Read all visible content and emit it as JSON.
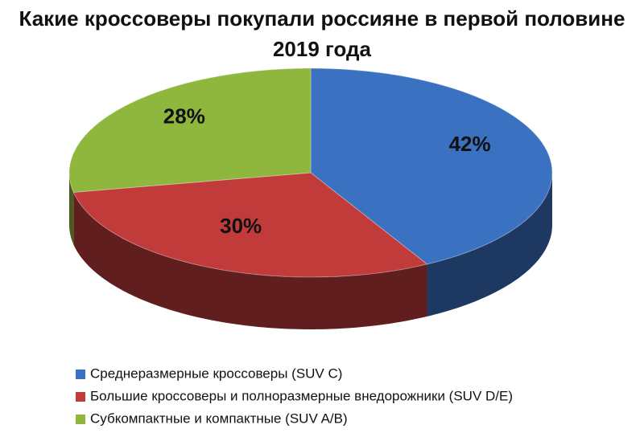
{
  "chart_data": {
    "type": "pie3d",
    "title": "Какие кроссоверы покупали россияне в первой половине 2019 года",
    "categories": [
      "Среднеразмерные кроссоверы (SUV C)",
      "Большие кроссоверы и полноразмерные внедорожники (SUV D/E)",
      "Субкомпактные и компактные (SUV A/B)"
    ],
    "values": [
      42,
      30,
      28
    ],
    "value_labels": [
      "42%",
      "30%",
      "28%"
    ],
    "colors": [
      "#3b71c1",
      "#c23b3b",
      "#8fb73e"
    ],
    "legend": "bottom"
  }
}
